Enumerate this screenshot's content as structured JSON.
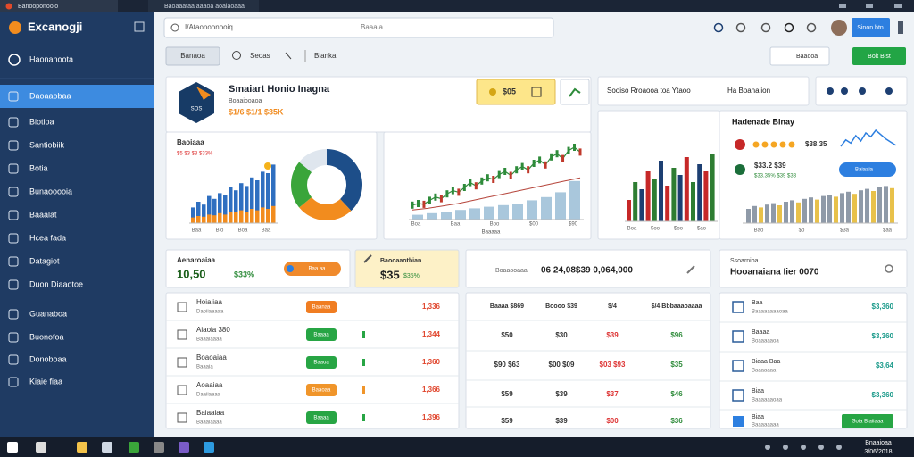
{
  "browser": {
    "tabs": [
      "Banooponooio",
      "Baoaaataa aaaoa aoaiaoaaa"
    ],
    "address": "I/Ataonoonooiq",
    "address_hint": "Baaaia"
  },
  "sidebar": {
    "brand": "Excanogji",
    "profile": "Haonanoota",
    "items": [
      "Daoaaobaa",
      "Biotioa",
      "Santiobiik",
      "Botia",
      "Bunaooooia",
      "Baaalat",
      "Hcea fada",
      "Datagiot",
      "Duon Diaaotoe",
      "Guanaboa",
      "Buonofoa",
      "Donoboaa",
      "Kiaie fiaa"
    ]
  },
  "toolbar": {
    "user_button": "Sinon btn",
    "buttons": [
      "Banaoa",
      "Seoas",
      "Blanka"
    ],
    "filter": "Baaooa",
    "action": "Bolt Bist"
  },
  "overview": {
    "title": "Smaiart Honio Inagna",
    "subtitle": "Boaaiooaoa",
    "stats": "$1/6 $1/1 $35K",
    "logo": "SOS",
    "badge": "$05"
  },
  "summary": {
    "title": "Sooiso Rroaooa toa Ytaoo",
    "label": "Ha Bpanaiion"
  },
  "charts": {
    "revenue": {
      "title": "Baoiaaa",
      "subtitle": "$5 $3 $3 $33%",
      "values": [
        22,
        30,
        26,
        38,
        34,
        42,
        40,
        50,
        46,
        56,
        52,
        64,
        60,
        72,
        70,
        82
      ],
      "values2": [
        8,
        10,
        9,
        12,
        11,
        14,
        12,
        16,
        15,
        18,
        16,
        20,
        18,
        22,
        20,
        24
      ],
      "donut": [
        38,
        26,
        22,
        14
      ],
      "donut_colors": [
        "#1d4e89",
        "#f28c1e",
        "#3aa53a",
        "#dfe6ee"
      ],
      "x_labels": [
        "Baa",
        "Bio",
        "Boa",
        "Baa"
      ]
    },
    "market": {
      "line": [
        18,
        20,
        19,
        24,
        28,
        26,
        32,
        36,
        34,
        40,
        46,
        42,
        48,
        52,
        50,
        56,
        60,
        55,
        62,
        66,
        62,
        70,
        74,
        68,
        78,
        82,
        76,
        86,
        90,
        84
      ],
      "trend": [
        12,
        14,
        17,
        20,
        24,
        28,
        32,
        36,
        40,
        44,
        48,
        52
      ],
      "volume": [
        6,
        8,
        10,
        12,
        14,
        16,
        18,
        20,
        24,
        28,
        34,
        48
      ],
      "x_labels": [
        "Boa",
        "Baa",
        "Boo",
        "$00",
        "$90"
      ],
      "caption": "Baaaaa"
    },
    "sales": {
      "values": [
        30,
        55,
        45,
        70,
        60,
        85,
        50,
        75,
        65,
        90,
        55,
        80,
        70,
        95
      ],
      "colors": [
        "#c62828",
        "#2e7d32",
        "#1d3f72"
      ],
      "x_labels": [
        "Boa",
        "$oo",
        "$oo",
        "$ao"
      ]
    },
    "rating": {
      "title": "Hadenade Binay",
      "row1_value": "$38.35",
      "row2_value": "$33.2 $39",
      "row2_sub": "$33.35% $39 $33",
      "button": "Baiaaia",
      "line": [
        60,
        72,
        66,
        80,
        70,
        85,
        78,
        90,
        82,
        74,
        68,
        62
      ],
      "bars": [
        20,
        24,
        22,
        26,
        28,
        25,
        30,
        32,
        29,
        34,
        36,
        33,
        38,
        40,
        37,
        42,
        44,
        41,
        46,
        48,
        45,
        50,
        52,
        49
      ],
      "x_labels": [
        "Bao",
        "$o",
        "$3a",
        "$aa"
      ]
    }
  },
  "cards": [
    {
      "title": "Aenaroaiaa",
      "value": "10,50",
      "pct": "$33%",
      "pill": "Baa aa"
    },
    {
      "title": "Baooaaotbian",
      "value": "$35",
      "pct": "$35%"
    },
    {
      "title": "Boaaooaaa",
      "value": "06 24,08$39 0,064,000"
    },
    {
      "title": "Ssoarnioa",
      "value": "Hooanaiana Iier 0070"
    }
  ],
  "orders": [
    {
      "name": "Hoiaiiaa",
      "sub": "Daoiiaaaaa",
      "status": "Baanaa",
      "status_color": "#f07d22",
      "value": "1,336",
      "value_color": "#e0442b"
    },
    {
      "name": "Aiaoia 380",
      "sub": "Baaaiaaaa",
      "status": "Baaaa",
      "status_color": "#27a544",
      "value": "1,344",
      "value_color": "#e0442b"
    },
    {
      "name": "Boaoaiaa",
      "sub": "Baaaia",
      "status": "Baaoa",
      "status_color": "#27a544",
      "value": "1,360",
      "value_color": "#e0442b"
    },
    {
      "name": "Aoaaiaa",
      "sub": "Daaiiaaaa",
      "status": "Baaoaa",
      "status_color": "#f0952a",
      "value": "1,366",
      "value_color": "#e0442b"
    },
    {
      "name": "Baiaaiaa",
      "sub": "Baaaiaaaa",
      "status": "Baaaa",
      "status_color": "#27a544",
      "value": "1,396",
      "value_color": "#e0442b"
    }
  ],
  "prices": {
    "header": [
      "Baaaa $869",
      "Boooo $39",
      "$/4",
      "$/4 Bbbaaaoaaaa"
    ],
    "rows": [
      [
        "$50",
        "$30",
        "$39",
        "$96"
      ],
      [
        "$90 $63",
        "$00 $09",
        "$03 $93",
        "$35"
      ],
      [
        "$59",
        "$39",
        "$37",
        "$46"
      ],
      [
        "$59",
        "$39",
        "$00",
        "$36"
      ]
    ]
  },
  "accounts": {
    "rows": [
      {
        "title": "Baa",
        "sub": "Baaaaaaaaoaa",
        "value": "$3,360"
      },
      {
        "title": "Baaaa",
        "sub": "Boaaaaaoa",
        "value": "$3,360"
      },
      {
        "title": "Biaaa Baa",
        "sub": "Baaaaaaa",
        "value": "$3,64"
      },
      {
        "title": "Biaa",
        "sub": "Baaaaaaoaa",
        "value": "$3,360"
      }
    ],
    "last": {
      "title": "Biaa",
      "sub": "Baaaaaaaa",
      "button": "Soia Biaiiaaa"
    }
  },
  "taskbar": {
    "time": "Bnaaioaa",
    "date": "3/06/2018"
  }
}
